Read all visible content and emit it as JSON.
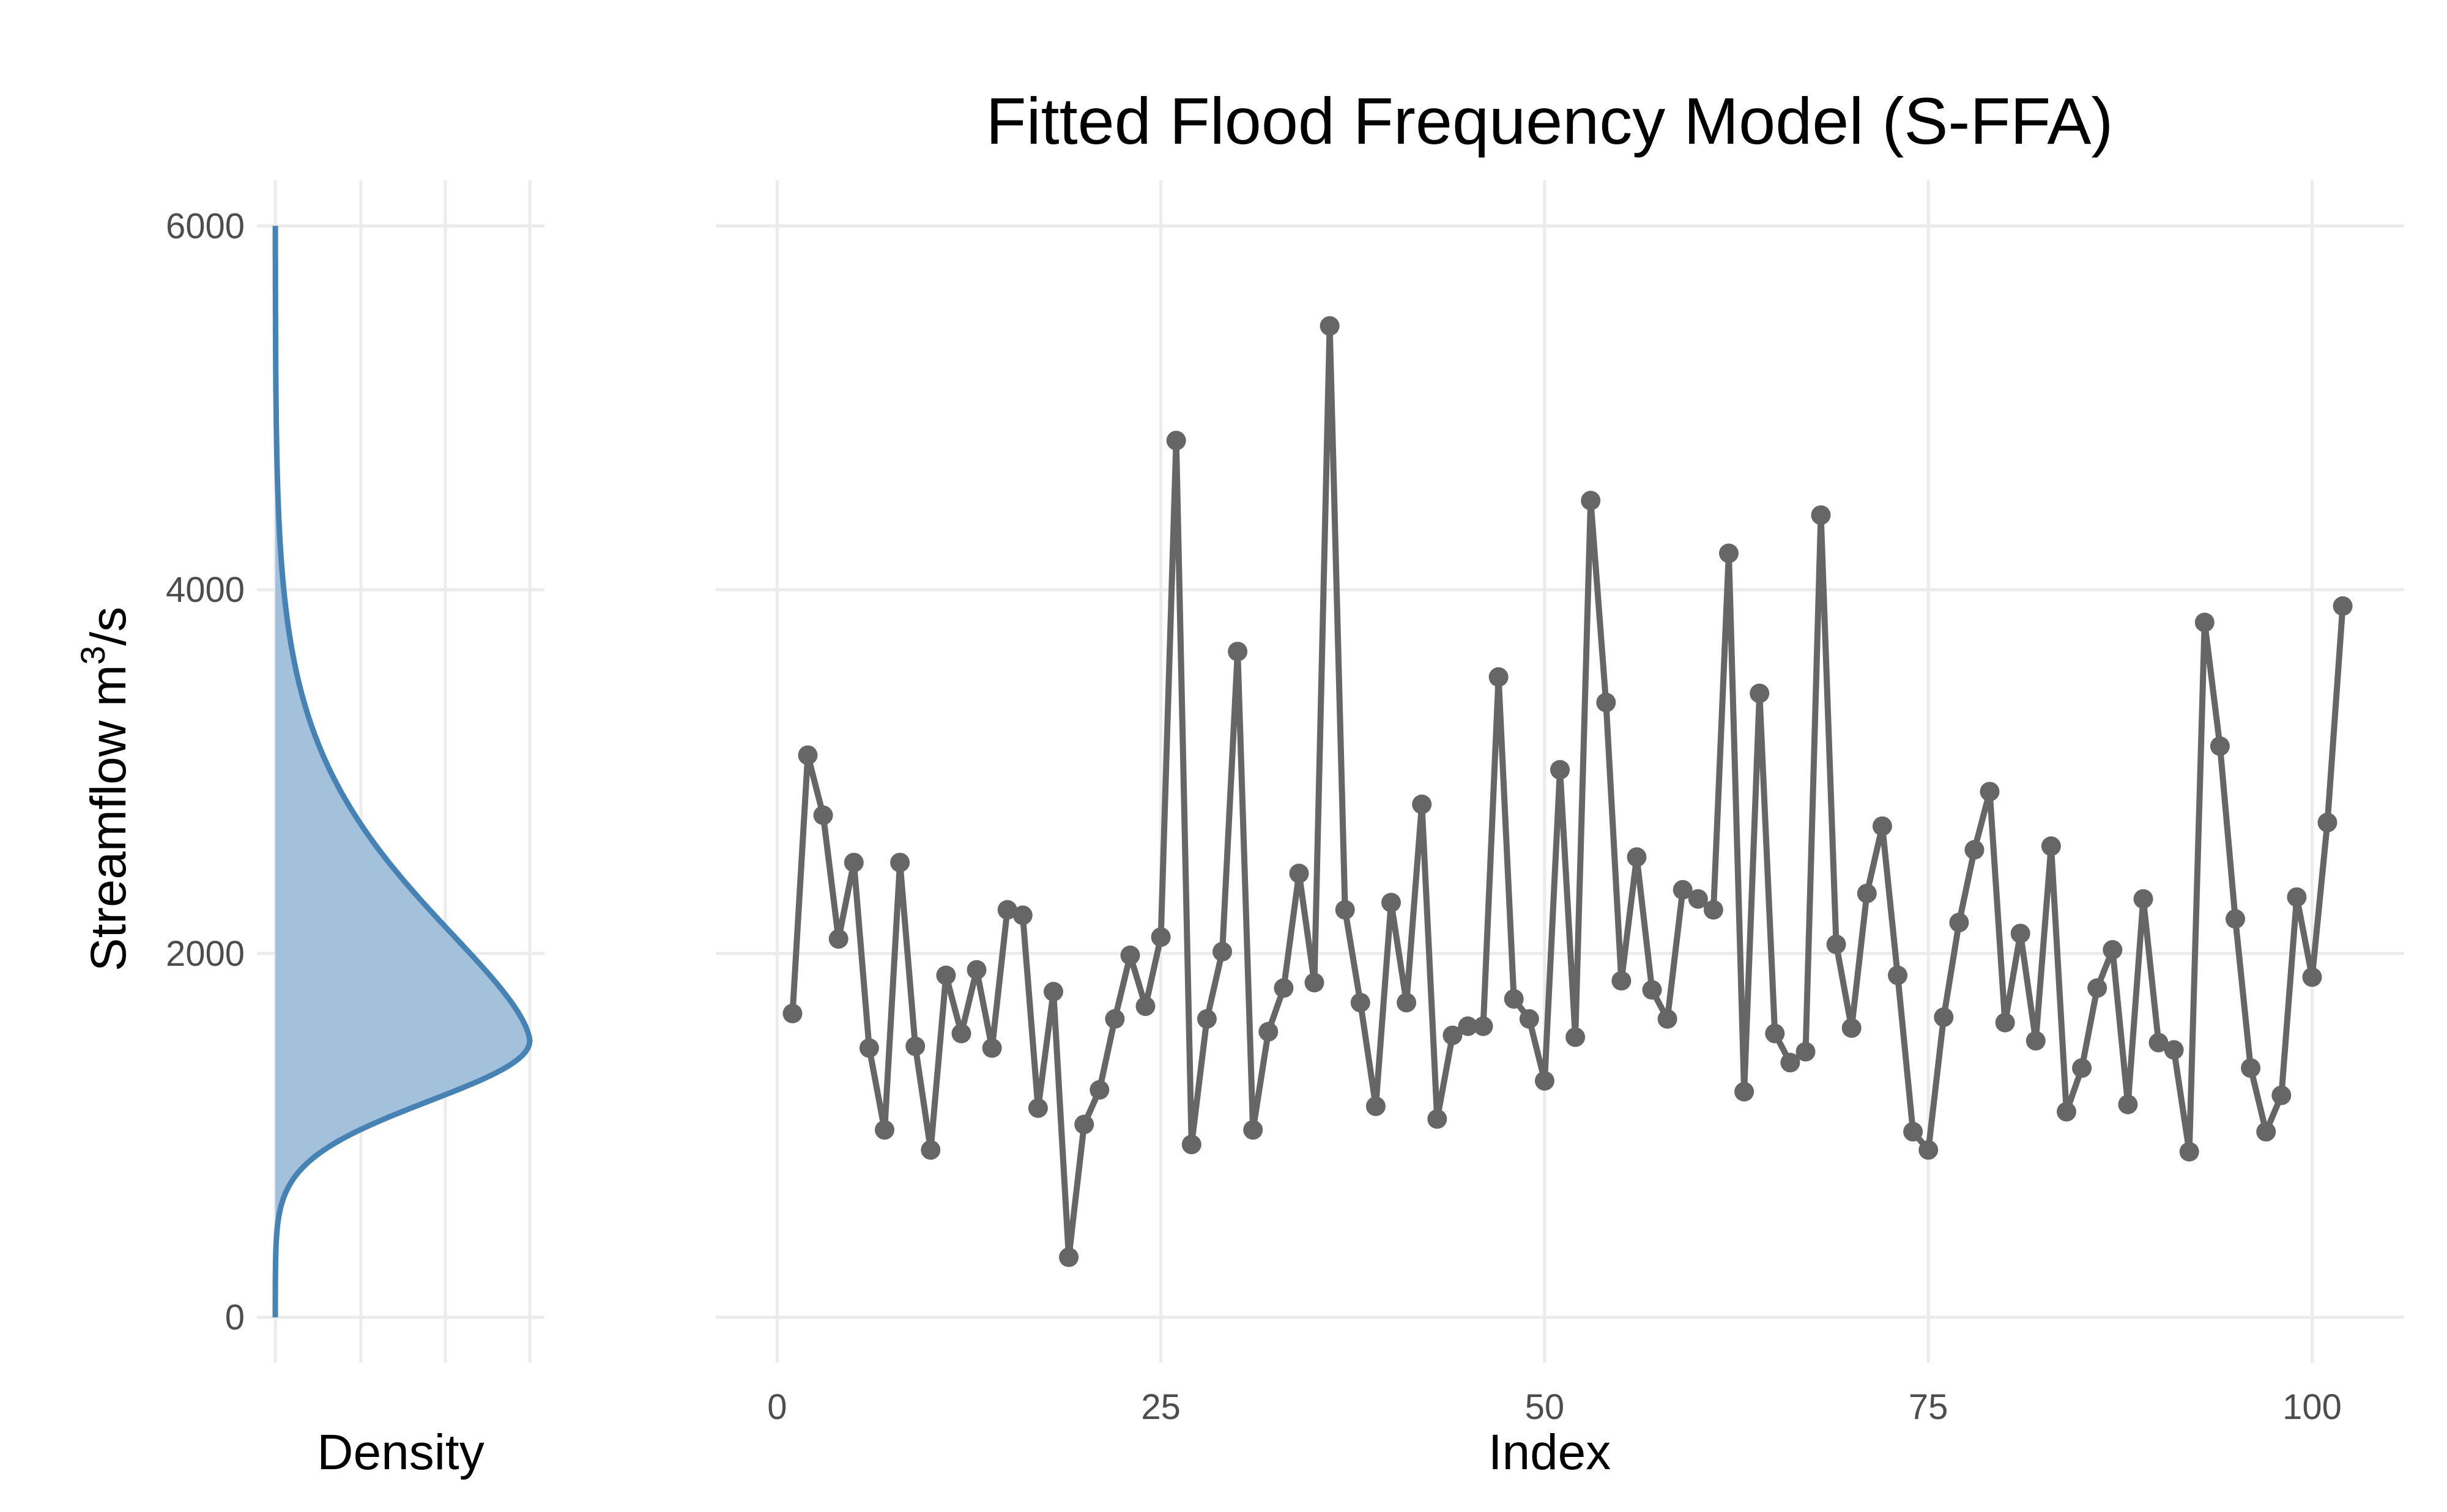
{
  "chart_data": [
    {
      "type": "area",
      "panel": "density",
      "xlabel": "Density",
      "ylabel": "Streamflow m",
      "ylabel_superscript": "3",
      "ylabel_suffix": "/s",
      "ylim": [
        -250,
        6250
      ],
      "yticks": [
        0,
        2000,
        4000,
        6000
      ],
      "grid": true,
      "distribution": {
        "mode": 1520,
        "lower_scale": 330,
        "upper_scale": 720
      },
      "y_range": [
        0,
        6000
      ],
      "colors": {
        "line": "#4682b4",
        "fill": "#a4c1dc"
      }
    },
    {
      "type": "line",
      "panel": "series",
      "title": "Fitted Flood Frequency Model (S-FFA)",
      "xlabel": "Index",
      "ylabel": "",
      "xlim": [
        -4,
        106
      ],
      "ylim": [
        -250,
        6250
      ],
      "xticks": [
        0,
        25,
        50,
        75,
        100
      ],
      "grid": true,
      "colors": {
        "line": "#666666",
        "point": "#666666"
      },
      "x": [
        1,
        2,
        3,
        4,
        5,
        6,
        7,
        8,
        9,
        10,
        11,
        12,
        13,
        14,
        15,
        16,
        17,
        18,
        19,
        20,
        21,
        22,
        23,
        24,
        25,
        26,
        27,
        28,
        29,
        30,
        31,
        32,
        33,
        34,
        35,
        36,
        37,
        38,
        39,
        40,
        41,
        42,
        43,
        44,
        45,
        46,
        47,
        48,
        49,
        50,
        51,
        52,
        53,
        54,
        55,
        56,
        57,
        58,
        59,
        60,
        61,
        62,
        63,
        64,
        65,
        66,
        67,
        68,
        69,
        70,
        71,
        72,
        73,
        74,
        75,
        76,
        77,
        78,
        79,
        80,
        81,
        82,
        83,
        84,
        85,
        86,
        87,
        88,
        89,
        90,
        91,
        92,
        93,
        94,
        95,
        96,
        97,
        98,
        99,
        100,
        101,
        102
      ],
      "y": [
        1670,
        3090,
        2760,
        2080,
        2500,
        1480,
        1030,
        2500,
        1490,
        920,
        1880,
        1560,
        1910,
        1480,
        2240,
        2210,
        1150,
        1790,
        330,
        1060,
        1250,
        1640,
        1990,
        1710,
        2090,
        4820,
        950,
        1640,
        2010,
        3660,
        1030,
        1570,
        1810,
        2440,
        1840,
        5450,
        2240,
        1730,
        1160,
        2280,
        1730,
        2820,
        1090,
        1550,
        1600,
        1600,
        3520,
        1750,
        1640,
        1300,
        3010,
        1540,
        4490,
        3380,
        1850,
        2530,
        1800,
        1640,
        2350,
        2300,
        2240,
        4200,
        1240,
        3430,
        1560,
        1400,
        1460,
        4410,
        2050,
        1590,
        2330,
        2700,
        1880,
        1020,
        920,
        1650,
        2170,
        2570,
        2890,
        1620,
        2110,
        1520,
        2590,
        1130,
        1370,
        1810,
        2020,
        1170,
        2300,
        1510,
        1470,
        910,
        3820,
        3140,
        2190,
        1370,
        1020,
        1220,
        2310,
        1870,
        2720,
        3910
      ]
    }
  ]
}
